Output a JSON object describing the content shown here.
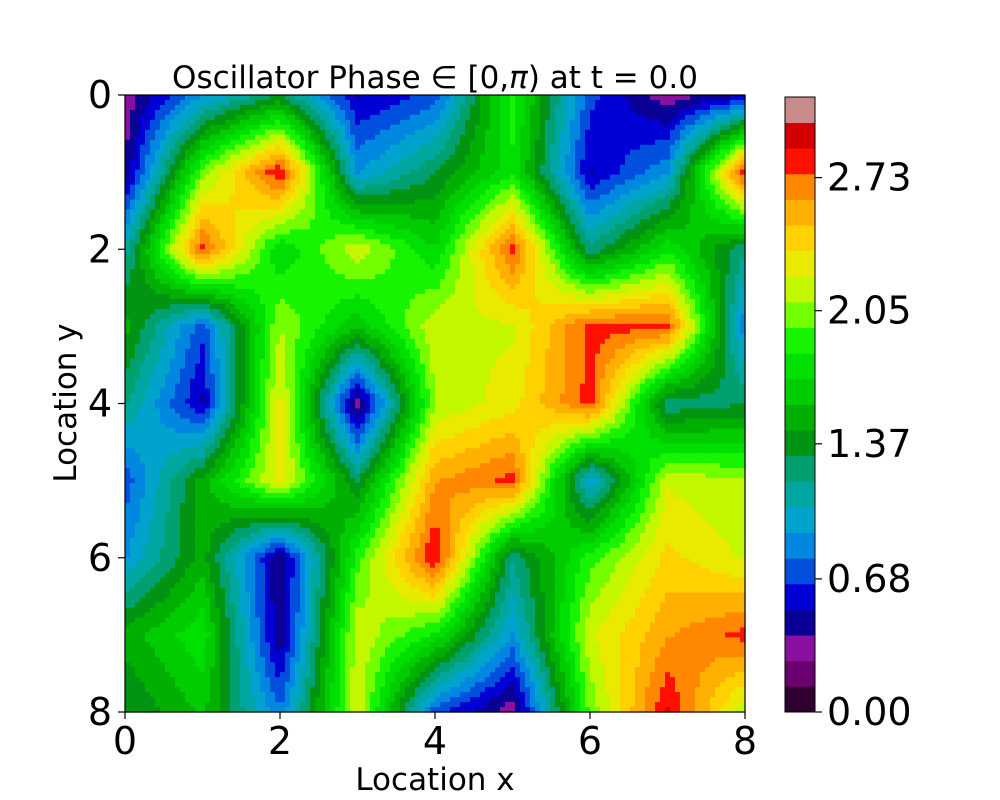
{
  "chart_data": {
    "type": "heatmap",
    "title": "Oscillator Phase $\\in$ [0,$\\pi$) at t = 0.0",
    "title_parts": [
      "Oscillator Phase ",
      "∈",
      " [0,",
      "π",
      ") at t = 0.0"
    ],
    "xlabel": "Location x",
    "ylabel": "Location y",
    "xlim": [
      0,
      8
    ],
    "ylim": [
      8,
      0
    ],
    "y_inverted": true,
    "x_ticks": [
      0,
      2,
      4,
      6,
      8
    ],
    "y_ticks": [
      0,
      2,
      4,
      6,
      8
    ],
    "grid": false,
    "colorbar": {
      "ticks": [
        "0.00",
        "0.68",
        "1.37",
        "2.05",
        "2.73"
      ],
      "range": [
        0,
        3.1416
      ],
      "levels": 24,
      "colors": [
        "#300030",
        "#6a006f",
        "#8a10a0",
        "#0a0095",
        "#0000d5",
        "#0050dd",
        "#0088e0",
        "#00a3cc",
        "#00a7a0",
        "#00a070",
        "#009412",
        "#00b000",
        "#00cc00",
        "#00e000",
        "#16f400",
        "#74ff00",
        "#c2f700",
        "#eaea00",
        "#ffd100",
        "#ffb000",
        "#ff8800",
        "#ff1000",
        "#d40000",
        "#c88a8a"
      ]
    },
    "grid_size": [
      9,
      9
    ],
    "x": [
      0,
      1,
      2,
      3,
      4,
      5,
      6,
      7,
      8
    ],
    "y": [
      0,
      1,
      2,
      3,
      4,
      5,
      6,
      7,
      8
    ],
    "z": [
      [
        0.3,
        0.9,
        1.3,
        0.5,
        0.7,
        1.9,
        0.7,
        0.3,
        0.5
      ],
      [
        0.4,
        2.0,
        2.9,
        0.9,
        1.3,
        1.8,
        0.5,
        0.9,
        2.9
      ],
      [
        1.1,
        2.8,
        1.7,
        2.2,
        1.7,
        2.8,
        1.2,
        1.8,
        1.2
      ],
      [
        1.5,
        0.7,
        2.1,
        1.6,
        2.2,
        2.2,
        2.8,
        2.8,
        0.8
      ],
      [
        1.2,
        0.5,
        2.3,
        0.3,
        2.1,
        2.3,
        2.8,
        1.2,
        1.3
      ],
      [
        0.7,
        1.5,
        2.3,
        1.3,
        2.6,
        2.8,
        0.9,
        2.2,
        2.1
      ],
      [
        0.9,
        1.5,
        0.4,
        1.9,
        2.9,
        1.2,
        1.9,
        2.4,
        2.2
      ],
      [
        1.5,
        1.8,
        0.4,
        2.2,
        1.8,
        0.9,
        2.2,
        2.6,
        2.8
      ],
      [
        1.3,
        1.6,
        0.8,
        2.2,
        0.7,
        0.3,
        2.0,
        2.9,
        2.1
      ]
    ]
  }
}
